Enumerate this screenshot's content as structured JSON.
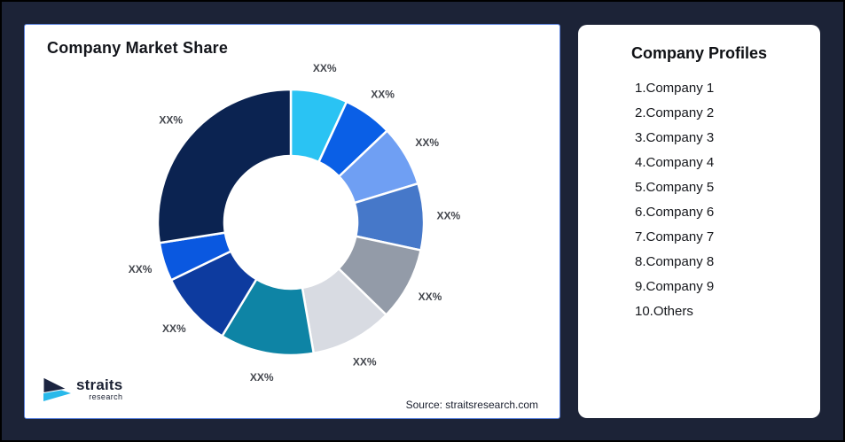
{
  "page": {
    "background_color": "#1C2337",
    "outer_border_color": "#000000"
  },
  "left_card": {
    "title": "Company Market Share",
    "source_note": "Source: straitsresearch.com",
    "border_color": "#5b82dd",
    "logo": {
      "brand": "straits",
      "subtitle": "research",
      "mark_navy": "#1B2440",
      "mark_cyan": "#29B9EA"
    }
  },
  "right_card": {
    "title": "Company Profiles",
    "items": [
      "1.Company 1",
      "2.Company 2",
      "3.Company 3",
      "4.Company 4",
      "5.Company 5",
      "6.Company 6",
      "7.Company 7",
      "8.Company 8",
      "9.Company 9",
      "10.Others"
    ]
  },
  "chart_data": {
    "type": "pie",
    "subtype": "donut",
    "title": "Company Market Share",
    "start_angle_deg": 0,
    "direction": "clockwise",
    "inner_radius_ratio": 0.5,
    "legend": "none",
    "categories": [
      "Company 1",
      "Company 2",
      "Company 3",
      "Company 4",
      "Company 5",
      "Company 6",
      "Company 7",
      "Company 8",
      "Company 9",
      "Others"
    ],
    "slice_labels": [
      "XX%",
      "XX%",
      "XX%",
      "XX%",
      "XX%",
      "XX%",
      "XX%",
      "XX%",
      "XX%",
      "XX%"
    ],
    "values_pct_estimated": [
      6.9,
      6.0,
      7.4,
      8.1,
      8.9,
      10.0,
      11.4,
      9.2,
      4.7,
      27.5
    ],
    "colors": [
      "#2AC3F3",
      "#0A5FE6",
      "#6F9FF3",
      "#4678C9",
      "#939BA8",
      "#D8DBE2",
      "#0E84A5",
      "#0D3B9F",
      "#0A58E0",
      "#0B2351"
    ],
    "label_color": "#44474E",
    "gap_color": "#FFFFFF"
  }
}
